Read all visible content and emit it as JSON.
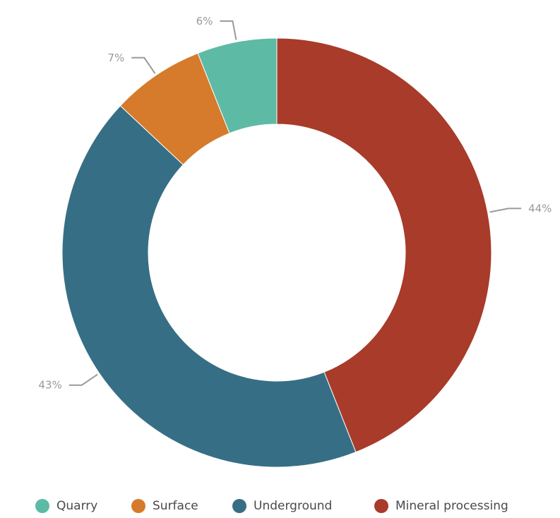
{
  "chart_data": {
    "type": "pie",
    "donut": true,
    "categories": [
      "Quarry",
      "Surface",
      "Underground",
      "Mineral processing"
    ],
    "values": [
      6,
      7,
      43,
      44
    ],
    "value_labels": [
      "6%",
      "7%",
      "43%",
      "44%"
    ],
    "colors": [
      "#5dbaa5",
      "#d67b2b",
      "#366f85",
      "#a83b29"
    ],
    "legend_position": "bottom"
  }
}
